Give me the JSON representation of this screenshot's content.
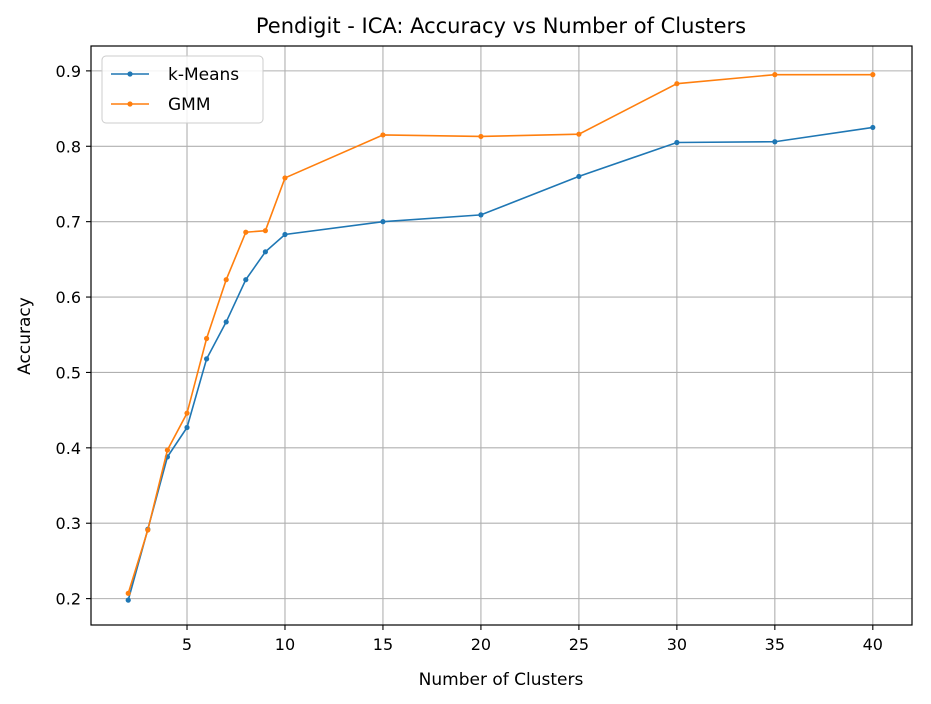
{
  "chart_data": {
    "type": "line",
    "title": "Pendigit - ICA: Accuracy vs Number of Clusters",
    "xlabel": "Number of Clusters",
    "ylabel": "Accuracy",
    "xlim": [
      0.1,
      42.0
    ],
    "ylim": [
      0.165,
      0.933
    ],
    "xticks": [
      5,
      10,
      15,
      20,
      25,
      30,
      35,
      40
    ],
    "yticks": [
      0.2,
      0.3,
      0.4,
      0.5,
      0.6,
      0.7,
      0.8,
      0.9
    ],
    "grid": true,
    "legend_position": "top-left",
    "x": [
      2,
      3,
      4,
      5,
      6,
      7,
      8,
      9,
      10,
      15,
      20,
      25,
      30,
      35,
      40
    ],
    "series": [
      {
        "name": "k-Means",
        "color": "#1f77b4",
        "values": [
          0.198,
          0.292,
          0.388,
          0.427,
          0.518,
          0.567,
          0.623,
          0.66,
          0.683,
          0.7,
          0.709,
          0.76,
          0.805,
          0.806,
          0.825
        ]
      },
      {
        "name": "GMM",
        "color": "#ff7f0e",
        "values": [
          0.207,
          0.291,
          0.397,
          0.446,
          0.545,
          0.623,
          0.686,
          0.688,
          0.758,
          0.815,
          0.813,
          0.816,
          0.883,
          0.895,
          0.895
        ]
      }
    ]
  }
}
